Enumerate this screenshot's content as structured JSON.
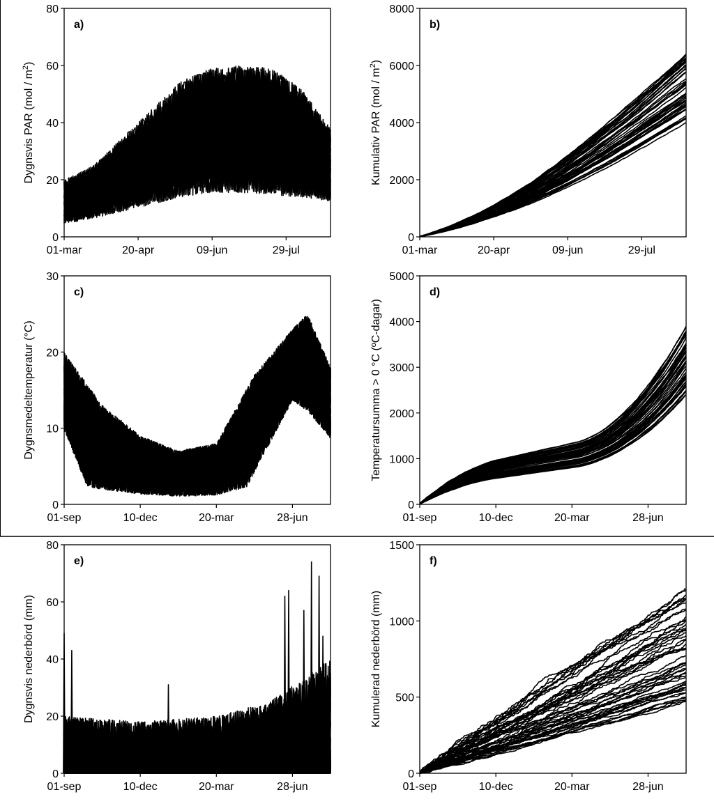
{
  "chart_data": [
    {
      "id": "a",
      "type": "line",
      "panel_label": "a)",
      "ylabel_parts": [
        "Dygnsvis  PAR (mol / m",
        "2",
        ")"
      ],
      "ylim": [
        0,
        80
      ],
      "yticks": [
        "0",
        "20",
        "40",
        "60",
        "80"
      ],
      "xlim": [
        0,
        180
      ],
      "xticks": [
        {
          "label": "01-mar",
          "day": 0
        },
        {
          "label": "20-apr",
          "day": 50
        },
        {
          "label": "09-jun",
          "day": 100
        },
        {
          "label": "29-jul",
          "day": 150
        }
      ],
      "grid": false,
      "series_count": 50,
      "model": "daily",
      "envelope_upper": [
        [
          0,
          20
        ],
        [
          20,
          25
        ],
        [
          50,
          40
        ],
        [
          80,
          55
        ],
        [
          100,
          59
        ],
        [
          120,
          60
        ],
        [
          140,
          59
        ],
        [
          160,
          52
        ],
        [
          180,
          38
        ]
      ],
      "envelope_lower": [
        [
          0,
          2
        ],
        [
          50,
          5
        ],
        [
          100,
          8
        ],
        [
          150,
          7
        ],
        [
          180,
          8
        ]
      ]
    },
    {
      "id": "b",
      "type": "line",
      "panel_label": "b)",
      "ylabel_parts": [
        "Kumulativ PAR (mol / m",
        "2",
        ")"
      ],
      "ylim": [
        0,
        8000
      ],
      "yticks": [
        "0",
        "2000",
        "4000",
        "6000",
        "8000"
      ],
      "xlim": [
        0,
        180
      ],
      "xticks": [
        {
          "label": "01-mar",
          "day": 0
        },
        {
          "label": "20-apr",
          "day": 50
        },
        {
          "label": "09-jun",
          "day": 100
        },
        {
          "label": "29-jul",
          "day": 150
        }
      ],
      "grid": false,
      "series_count": 50,
      "model": "cumulative",
      "endpoints_range": [
        4000,
        6400
      ]
    },
    {
      "id": "c",
      "type": "line",
      "panel_label": "c)",
      "ylabel": "Dygnsmedeltemperatur (°C)",
      "ylim": [
        0,
        30
      ],
      "yticks": [
        "0",
        "10",
        "20",
        "30"
      ],
      "xlim": [
        0,
        350
      ],
      "xticks": [
        {
          "label": "01-sep",
          "day": 0
        },
        {
          "label": "10-dec",
          "day": 100
        },
        {
          "label": "20-mar",
          "day": 200
        },
        {
          "label": "28-jun",
          "day": 300
        }
      ],
      "grid": false,
      "series_count": 50,
      "model": "daily",
      "envelope_upper": [
        [
          0,
          20
        ],
        [
          50,
          13
        ],
        [
          100,
          9
        ],
        [
          150,
          7
        ],
        [
          200,
          8
        ],
        [
          250,
          17
        ],
        [
          300,
          23
        ],
        [
          320,
          25
        ],
        [
          350,
          18
        ]
      ],
      "envelope_lower": [
        [
          0,
          8
        ],
        [
          30,
          0
        ],
        [
          240,
          0
        ],
        [
          300,
          12
        ],
        [
          350,
          7
        ]
      ]
    },
    {
      "id": "d",
      "type": "line",
      "panel_label": "d)",
      "ylabel": "Temperatursumma > 0 °C (ºC-dagar)",
      "ylim": [
        0,
        5000
      ],
      "yticks": [
        "0",
        "1000",
        "2000",
        "3000",
        "4000",
        "5000"
      ],
      "xlim": [
        0,
        350
      ],
      "xticks": [
        {
          "label": "01-sep",
          "day": 0
        },
        {
          "label": "10-dec",
          "day": 100
        },
        {
          "label": "20-mar",
          "day": 200
        },
        {
          "label": "28-jun",
          "day": 300
        }
      ],
      "grid": false,
      "series_count": 50,
      "model": "cumulative",
      "endpoints_range": [
        2400,
        3900
      ]
    },
    {
      "id": "e",
      "type": "line",
      "panel_label": "e)",
      "ylabel": "Dygnsvis nederbörd (mm)",
      "ylim": [
        0,
        80
      ],
      "yticks": [
        "0",
        "20",
        "40",
        "60",
        "80"
      ],
      "xlim": [
        0,
        350
      ],
      "xticks": [
        {
          "label": "01-sep",
          "day": 0
        },
        {
          "label": "10-dec",
          "day": 100
        },
        {
          "label": "20-mar",
          "day": 200
        },
        {
          "label": "28-jun",
          "day": 300
        }
      ],
      "grid": false,
      "series_count": 50,
      "model": "spiky",
      "envelope_upper": [
        [
          0,
          20
        ],
        [
          100,
          18
        ],
        [
          200,
          20
        ],
        [
          270,
          25
        ],
        [
          350,
          40
        ]
      ],
      "peaks": [
        [
          0,
          49
        ],
        [
          10,
          43
        ],
        [
          137,
          31
        ],
        [
          290,
          62
        ],
        [
          295,
          64
        ],
        [
          315,
          57
        ],
        [
          325,
          74
        ],
        [
          335,
          69
        ],
        [
          340,
          48
        ]
      ]
    },
    {
      "id": "f",
      "type": "line",
      "panel_label": "f)",
      "ylabel": "Kumulerad nederbörd (mm)",
      "ylim": [
        0,
        1500
      ],
      "yticks": [
        "0",
        "500",
        "1000",
        "1500"
      ],
      "xlim": [
        0,
        350
      ],
      "xticks": [
        {
          "label": "01-sep",
          "day": 0
        },
        {
          "label": "10-dec",
          "day": 100
        },
        {
          "label": "20-mar",
          "day": 200
        },
        {
          "label": "28-jun",
          "day": 300
        }
      ],
      "grid": false,
      "series_count": 50,
      "model": "cumulative",
      "endpoints_range": [
        470,
        1210
      ]
    }
  ]
}
